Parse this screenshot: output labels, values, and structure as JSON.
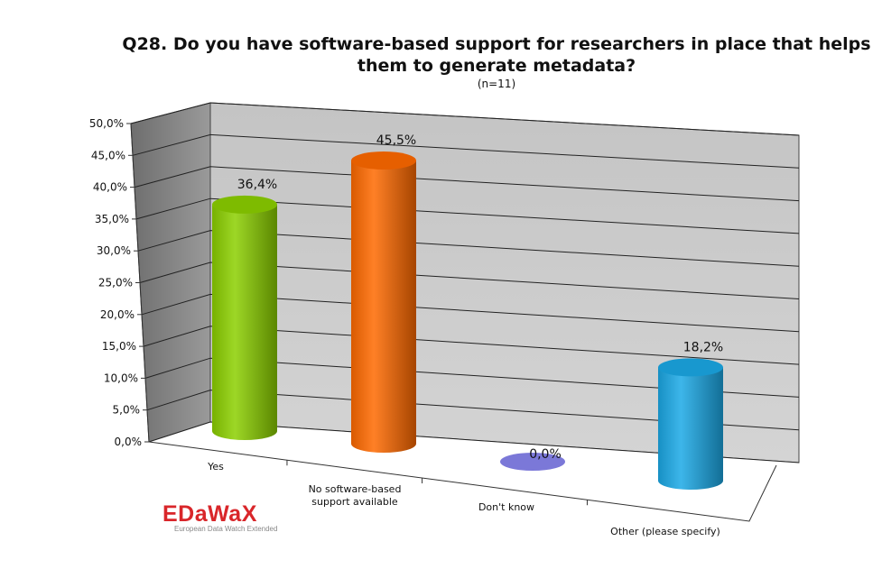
{
  "chart_data": {
    "type": "bar",
    "title": "Q28. Do you have software-based support for researchers in place that helps them to generate metadata?",
    "subtitle": "(n=11)",
    "categories": [
      [
        "Yes"
      ],
      [
        "No software-based",
        "support available"
      ],
      [
        "Don't know"
      ],
      [
        "Other (please specify)"
      ]
    ],
    "values": [
      36.4,
      45.5,
      0.0,
      18.2
    ],
    "value_labels": [
      "36,4%",
      "45,5%",
      "0,0%",
      "18,2%"
    ],
    "colors": [
      "#8cd000",
      "#ff6a00",
      "#7b78d8",
      "#1ba9e6"
    ],
    "y_ticks": [
      "0,0%",
      "5,0%",
      "10,0%",
      "15,0%",
      "20,0%",
      "25,0%",
      "30,0%",
      "35,0%",
      "40,0%",
      "45,0%",
      "50,0%"
    ],
    "ylim": [
      0,
      50
    ],
    "grid": true,
    "legend": "none"
  },
  "logo": {
    "name": "EDaWaX",
    "tagline": "European Data Watch Extended"
  }
}
